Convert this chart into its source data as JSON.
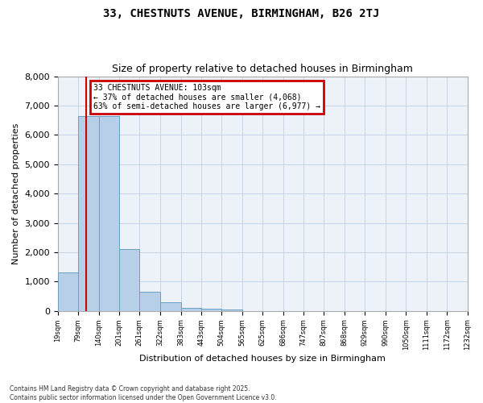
{
  "title": "33, CHESTNUTS AVENUE, BIRMINGHAM, B26 2TJ",
  "subtitle": "Size of property relative to detached houses in Birmingham",
  "xlabel": "Distribution of detached houses by size in Birmingham",
  "ylabel": "Number of detached properties",
  "bar_color": "#b8cfe8",
  "bar_edge_color": "#6a9fc0",
  "highlight_line_color": "#cc0000",
  "grid_color": "#c5d5e5",
  "background_color": "#edf2f8",
  "annotation_text": "33 CHESTNUTS AVENUE: 103sqm\n← 37% of detached houses are smaller (4,068)\n63% of semi-detached houses are larger (6,977) →",
  "annotation_box_color": "#cc0000",
  "property_size_sqm": 103,
  "bin_edges": [
    19,
    79,
    140,
    201,
    261,
    322,
    383,
    443,
    504,
    565,
    625,
    686,
    747,
    807,
    868,
    929,
    990,
    1050,
    1111,
    1172,
    1232
  ],
  "bin_counts": [
    1300,
    6650,
    6650,
    2100,
    650,
    300,
    100,
    70,
    50,
    0,
    0,
    0,
    0,
    0,
    0,
    0,
    0,
    0,
    0,
    0
  ],
  "ylim": [
    0,
    8000
  ],
  "yticks": [
    0,
    1000,
    2000,
    3000,
    4000,
    5000,
    6000,
    7000,
    8000
  ],
  "footnote1": "Contains HM Land Registry data © Crown copyright and database right 2025.",
  "footnote2": "Contains public sector information licensed under the Open Government Licence v3.0."
}
